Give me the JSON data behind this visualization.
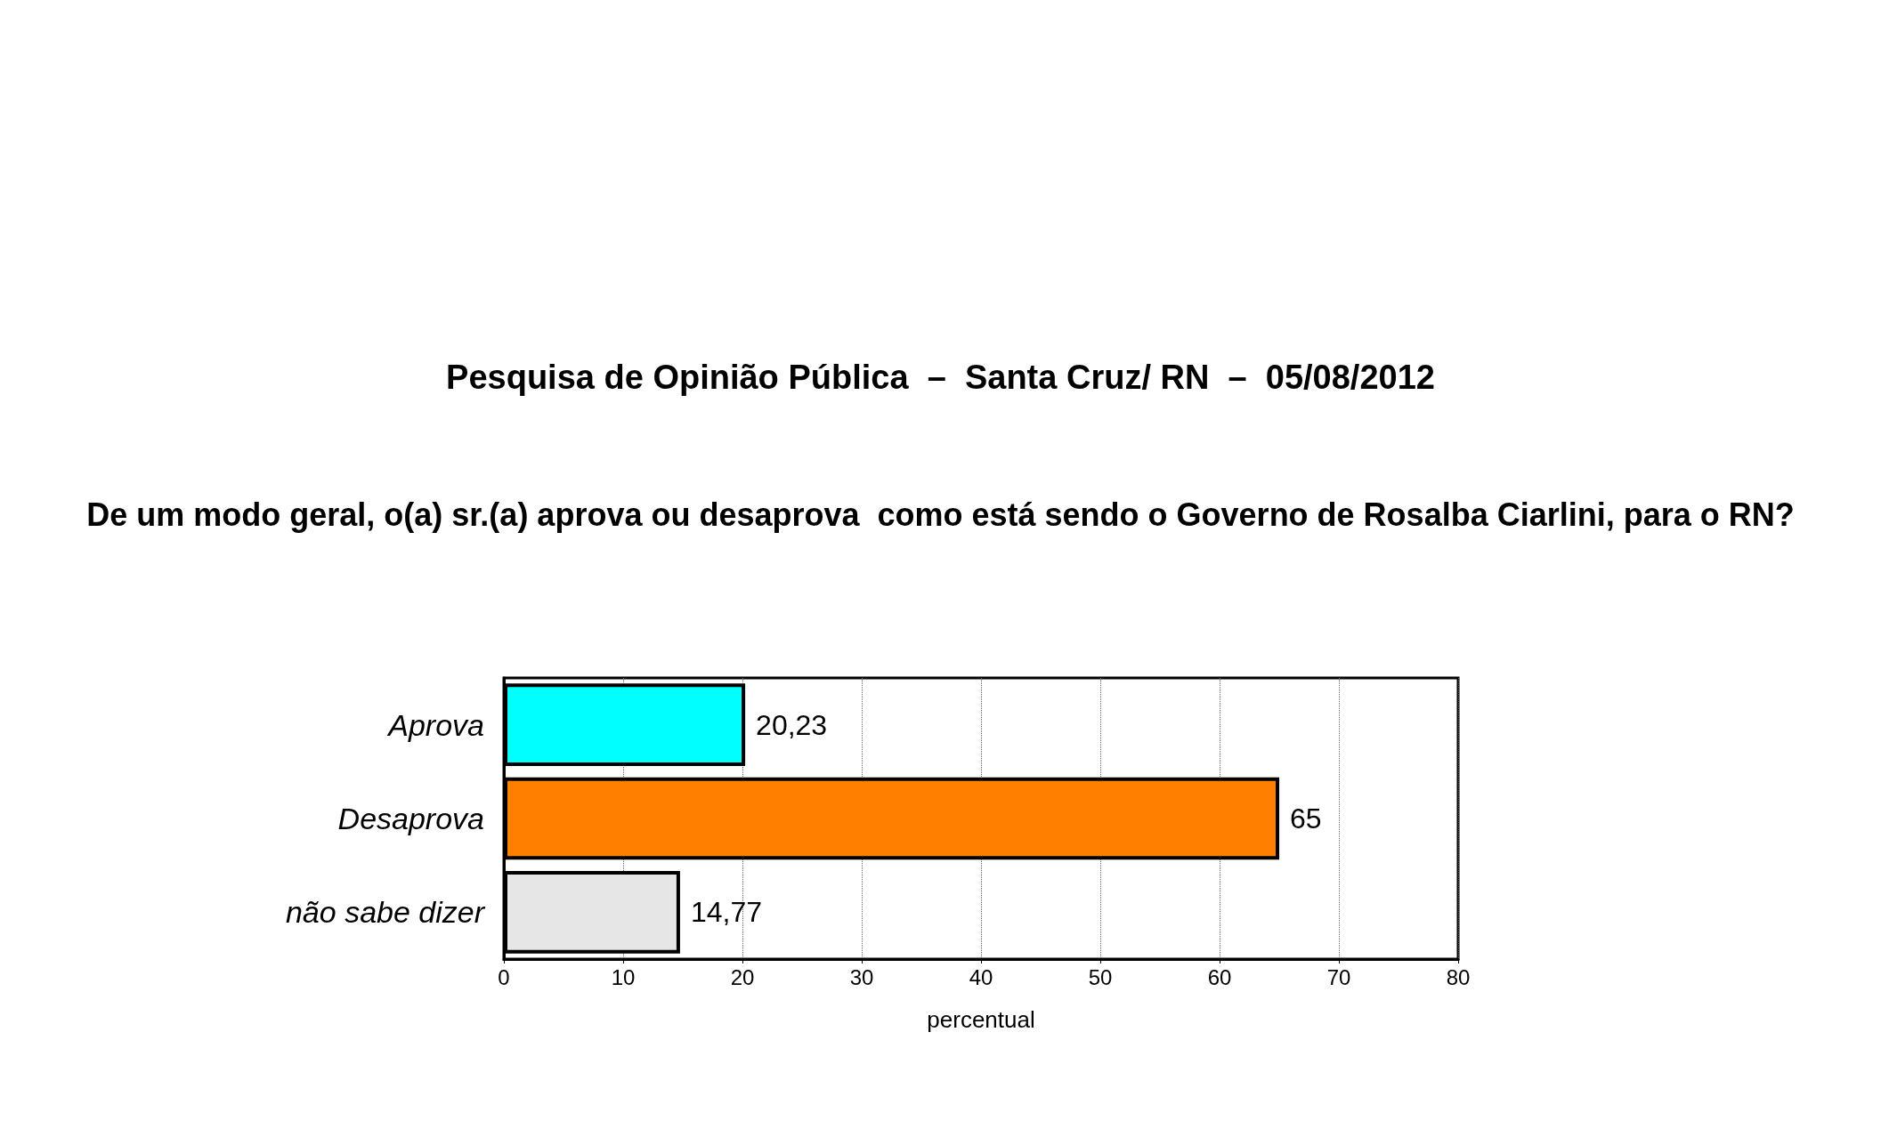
{
  "chart_data": {
    "type": "bar",
    "orientation": "horizontal",
    "title": "Pesquisa de Opinião Pública  –  Santa Cruz/ RN  –  05/08/2012",
    "subtitle": "De um modo geral, o(a) sr.(a) aprova ou desaprova  como está sendo o Governo de Rosalba Ciarlini, para o RN?",
    "xlabel": "percentual",
    "categories": [
      "Aprova",
      "Desaprova",
      "não sabe dizer"
    ],
    "values": [
      20.23,
      65,
      14.77
    ],
    "colors": [
      "#00ffff",
      "#ff8000",
      "#e6e6e6"
    ],
    "value_labels": [
      "20,23",
      "65",
      "14,77"
    ],
    "xlim": [
      0,
      80
    ],
    "xticks": [
      0,
      10,
      20,
      30,
      40,
      50,
      60,
      70,
      80
    ],
    "grid": "x"
  }
}
